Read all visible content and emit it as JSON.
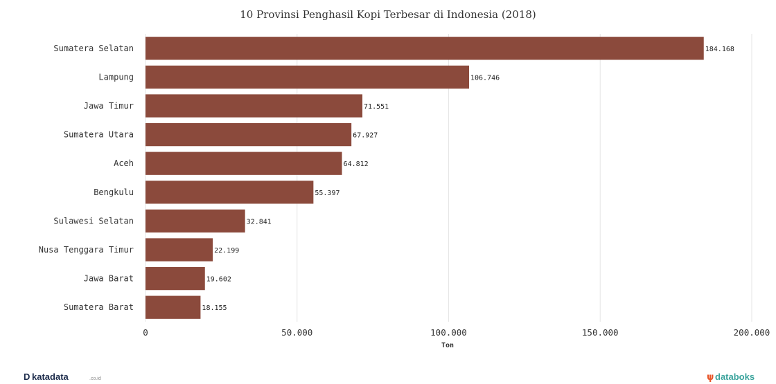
{
  "chart_data": {
    "type": "bar",
    "orientation": "horizontal",
    "title": "10 Provinsi Penghasil Kopi Terbesar di Indonesia (2018)",
    "xlabel": "Ton",
    "categories": [
      "Sumatera Selatan",
      "Lampung",
      "Jawa Timur",
      "Sumatera Utara",
      "Aceh",
      "Bengkulu",
      "Sulawesi Selatan",
      "Nusa Tenggara Timur",
      "Jawa Barat",
      "Sumatera Barat"
    ],
    "values": [
      184168,
      106746,
      71551,
      67927,
      64812,
      55397,
      32841,
      22199,
      19602,
      18155
    ],
    "value_labels": [
      "184.168",
      "106.746",
      "71.551",
      "67.927",
      "64.812",
      "55.397",
      "32.841",
      "22.199",
      "19.602",
      "18.155"
    ],
    "xlim": [
      0,
      200000
    ],
    "ticks": [
      0,
      50000,
      100000,
      150000,
      200000
    ],
    "tick_labels": [
      "0",
      "50.000",
      "100.000",
      "150.000",
      "200.000"
    ],
    "grid": true,
    "bar_color": "#8b4a3c"
  },
  "branding": {
    "left": "katadata",
    "left_suffix": ".co.id",
    "left_icon": "katadata-logo-icon",
    "right": "databoks",
    "right_icon": "databoks-logo-icon",
    "right_color": "#3aa39c",
    "right_icon_color": "#e8562a"
  }
}
